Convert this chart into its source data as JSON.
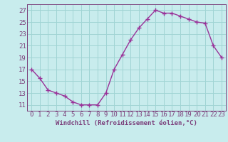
{
  "x": [
    0,
    1,
    2,
    3,
    4,
    5,
    6,
    7,
    8,
    9,
    10,
    11,
    12,
    13,
    14,
    15,
    16,
    17,
    18,
    19,
    20,
    21,
    22,
    23
  ],
  "y": [
    17.0,
    15.5,
    13.5,
    13.0,
    12.5,
    11.5,
    11.0,
    11.0,
    11.0,
    13.0,
    17.0,
    19.5,
    22.0,
    24.0,
    25.5,
    27.0,
    26.5,
    26.5,
    26.0,
    25.5,
    25.0,
    24.8,
    21.0,
    19.0
  ],
  "line_color": "#993399",
  "marker": "+",
  "marker_size": 4,
  "background_color": "#c8eced",
  "grid_color": "#a0d4d4",
  "axis_color": "#7b3f7b",
  "xlabel": "Windchill (Refroidissement éolien,°C)",
  "xlabel_fontsize": 6.5,
  "tick_fontsize": 6.5,
  "ylim": [
    10.0,
    28.0
  ],
  "xlim": [
    -0.5,
    23.5
  ],
  "yticks": [
    11,
    13,
    15,
    17,
    19,
    21,
    23,
    25,
    27
  ],
  "xticks": [
    0,
    1,
    2,
    3,
    4,
    5,
    6,
    7,
    8,
    9,
    10,
    11,
    12,
    13,
    14,
    15,
    16,
    17,
    18,
    19,
    20,
    21,
    22,
    23
  ]
}
